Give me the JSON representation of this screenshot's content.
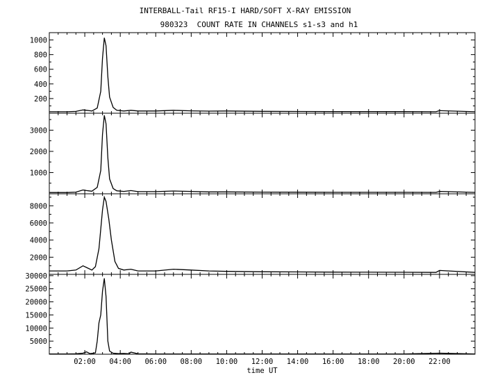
{
  "chart_data": {
    "title": "INTERBALL-Tail RF15-I HARD/SOFT X-RAY EMISSION",
    "subtitle": "980323  COUNT RATE IN CHANNELS s1-s3 and h1",
    "xlabel": "time UT",
    "x_ticks": [
      "02:00",
      "04:00",
      "06:00",
      "08:00",
      "10:00",
      "12:00",
      "14:00",
      "16:00",
      "18:00",
      "20:00",
      "22:00"
    ],
    "x_tick_values": [
      2,
      4,
      6,
      8,
      10,
      12,
      14,
      16,
      18,
      20,
      22
    ],
    "xlim": [
      0,
      24
    ],
    "panels": [
      {
        "type": "line",
        "ylim": [
          0,
          1100
        ],
        "y_ticks": [
          200,
          400,
          600,
          800,
          1000
        ],
        "y_tick_labels": [
          "200",
          "400",
          "600",
          "800",
          "1000"
        ],
        "series": [
          {
            "x": [
              0,
              1.0,
              1.5,
              1.9,
              2.1,
              2.4,
              2.7,
              2.9,
              3.0,
              3.1,
              3.2,
              3.3,
              3.4,
              3.6,
              3.8,
              4.2,
              4.6,
              5.0,
              6.0,
              7.0,
              8.0,
              9.0,
              10.0,
              12.0,
              14.0,
              16.0,
              18.0,
              20.0,
              21.8,
              22.0,
              24.0
            ],
            "y": [
              20,
              20,
              25,
              45,
              40,
              30,
              70,
              300,
              750,
              1030,
              920,
              500,
              220,
              80,
              40,
              30,
              40,
              30,
              30,
              40,
              32,
              28,
              30,
              26,
              24,
              22,
              22,
              22,
              20,
              35,
              20
            ]
          }
        ]
      },
      {
        "type": "line",
        "ylim": [
          0,
          3800
        ],
        "y_ticks": [
          1000,
          2000,
          3000
        ],
        "y_tick_labels": [
          "1000",
          "2000",
          "3000"
        ],
        "series": [
          {
            "x": [
              0,
              1.0,
              1.5,
              1.9,
              2.1,
              2.4,
              2.7,
              2.9,
              3.0,
              3.1,
              3.2,
              3.3,
              3.4,
              3.6,
              3.8,
              4.2,
              4.6,
              5.0,
              6.0,
              7.0,
              8.0,
              9.0,
              10.0,
              12.0,
              14.0,
              16.0,
              18.0,
              20.0,
              21.8,
              22.0,
              24.0
            ],
            "y": [
              60,
              60,
              80,
              180,
              150,
              120,
              300,
              1100,
              2800,
              3700,
              3300,
              1700,
              700,
              250,
              140,
              110,
              150,
              100,
              100,
              130,
              110,
              90,
              90,
              80,
              75,
              70,
              70,
              70,
              65,
              110,
              65
            ]
          }
        ]
      },
      {
        "type": "line",
        "ylim": [
          0,
          9400
        ],
        "y_ticks": [
          2000,
          4000,
          6000,
          8000
        ],
        "y_tick_labels": [
          "2000",
          "4000",
          "6000",
          "8000"
        ],
        "series": [
          {
            "x": [
              0,
              1.0,
              1.5,
              1.9,
              2.1,
              2.4,
              2.6,
              2.8,
              3.0,
              3.1,
              3.2,
              3.35,
              3.5,
              3.7,
              3.9,
              4.2,
              4.6,
              5.0,
              6.0,
              7.0,
              8.0,
              9.0,
              10.0,
              12.0,
              14.0,
              16.0,
              18.0,
              20.0,
              21.8,
              22.0,
              24.0
            ],
            "y": [
              400,
              400,
              500,
              1000,
              800,
              500,
              900,
              3000,
              7500,
              9000,
              8500,
              6500,
              4000,
              1500,
              700,
              500,
              600,
              400,
              400,
              600,
              500,
              400,
              350,
              300,
              280,
              260,
              250,
              240,
              230,
              450,
              230
            ]
          }
        ]
      },
      {
        "type": "line",
        "ylim": [
          0,
          30500
        ],
        "y_ticks": [
          5000,
          10000,
          15000,
          20000,
          25000,
          30000
        ],
        "y_tick_labels": [
          "5000",
          "10000",
          "15000",
          "20000",
          "25000",
          "30000"
        ],
        "series": [
          {
            "x": [
              0,
              1.0,
              1.5,
              1.9,
              2.1,
              2.3,
              2.6,
              2.7,
              2.8,
              2.9,
              3.0,
              3.1,
              3.2,
              3.3,
              3.4,
              3.6,
              3.9,
              4.2,
              4.5,
              4.6,
              5.0,
              6.0,
              8.0,
              10.0,
              12.0,
              14.0,
              16.0,
              18.0,
              20.0,
              22.0,
              24.0
            ],
            "y": [
              100,
              100,
              150,
              400,
              900,
              200,
              500,
              5000,
              12000,
              15000,
              24000,
              29000,
              22000,
              5000,
              1200,
              400,
              200,
              300,
              150,
              800,
              150,
              100,
              100,
              100,
              100,
              100,
              100,
              100,
              100,
              400,
              100
            ]
          }
        ]
      }
    ]
  }
}
